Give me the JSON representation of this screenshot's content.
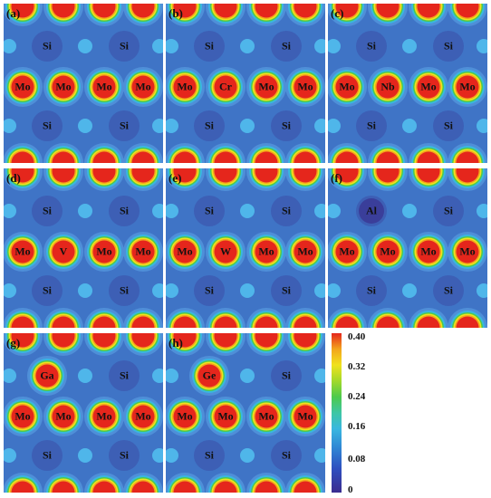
{
  "colors": {
    "background_blue": "#3f74c6",
    "low_density": "#3b2c8f",
    "high_density": "#e5261c",
    "ring_yellow": "#f0e21d",
    "ring_green": "#4dca4d",
    "ring_cyan": "#39b7e0"
  },
  "panels": [
    {
      "label": "(a)",
      "atoms": [
        "Si",
        "Si",
        "Mo",
        "Mo",
        "Mo",
        "Mo",
        "Si",
        "Si"
      ]
    },
    {
      "label": "(b)",
      "atoms": [
        "Si",
        "Si",
        "Mo",
        "Cr",
        "Mo",
        "Mo",
        "Si",
        "Si"
      ]
    },
    {
      "label": "(c)",
      "atoms": [
        "Si",
        "Si",
        "Mo",
        "Nb",
        "Mo",
        "Mo",
        "Si",
        "Si"
      ]
    },
    {
      "label": "(d)",
      "atoms": [
        "Si",
        "Si",
        "Mo",
        "V",
        "Mo",
        "Mo",
        "Si",
        "Si"
      ]
    },
    {
      "label": "(e)",
      "atoms": [
        "Si",
        "Si",
        "Mo",
        "W",
        "Mo",
        "Mo",
        "Si",
        "Si"
      ]
    },
    {
      "label": "(f)",
      "atoms": [
        "Al",
        "Si",
        "Mo",
        "Mo",
        "Mo",
        "Mo",
        "Si",
        "Si"
      ]
    },
    {
      "label": "(g)",
      "atoms": [
        "Ga",
        "Si",
        "Mo",
        "Mo",
        "Mo",
        "Mo",
        "Si",
        "Si"
      ]
    },
    {
      "label": "(h)",
      "atoms": [
        "Ge",
        "Si",
        "Mo",
        "Mo",
        "Mo",
        "Mo",
        "Si",
        "Si"
      ]
    }
  ],
  "colorbar": {
    "ticks": [
      "0.40",
      "0.32",
      "0.24",
      "0.16",
      "0.08",
      "0"
    ]
  }
}
